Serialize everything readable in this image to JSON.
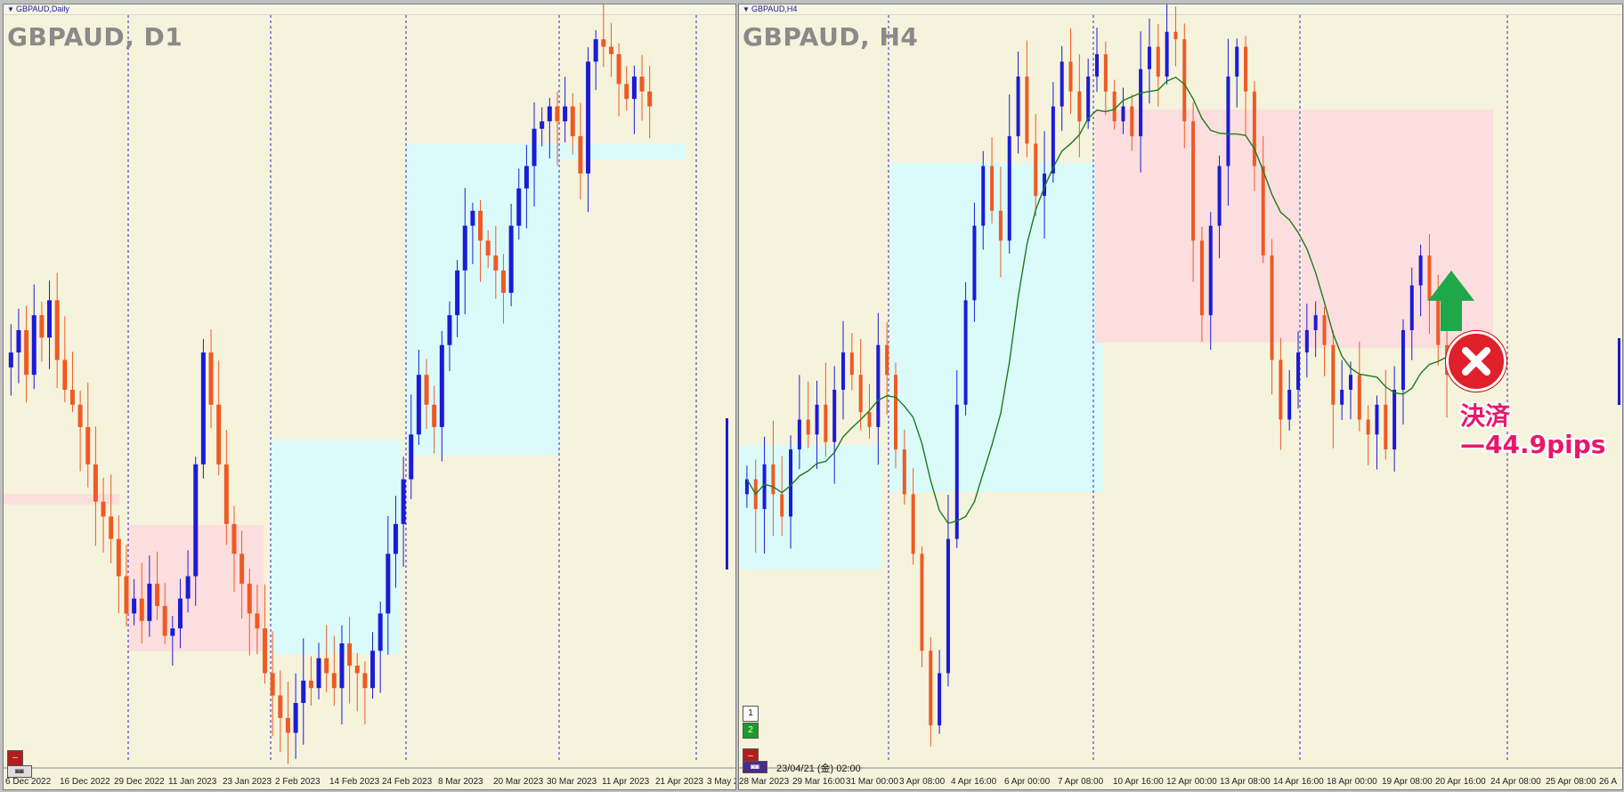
{
  "colors": {
    "background": "#f5f3dc",
    "bull": "#1b1bd6",
    "bear": "#ee5a24",
    "ma": "#1c7a1c",
    "blue_zone": "#dbfbfb",
    "red_zone": "#fddede",
    "grid": "#2a2ad0"
  },
  "left": {
    "caption": "GBPAUD,Daily",
    "symbol": "GBPAUD, D1",
    "x_labels": [
      "6 Dec 2022",
      "16 Dec 2022",
      "29 Dec 2022",
      "11 Jan 2023",
      "23 Jan 2023",
      "2 Feb 2023",
      "14 Feb 2023",
      "24 Feb 2023",
      "8 Mar 2023",
      "20 Mar 2023",
      "30 Mar 2023",
      "11 Apr 2023",
      "21 Apr 2023",
      "3 May 2"
    ]
  },
  "right": {
    "caption": "GBPAUD,H4",
    "symbol": "GBPAUD, H4",
    "x_labels": [
      "28 Mar 2023",
      "29 Mar 16:00",
      "31 Mar 00:00",
      "3 Apr 08:00",
      "4 Apr 16:00",
      "6 Apr 00:00",
      "7 Apr 08:00",
      "10 Apr 16:00",
      "12 Apr 00:00",
      "13 Apr 08:00",
      "14 Apr 16:00",
      "18 Apr 00:00",
      "19 Apr 08:00",
      "20 Apr 16:00",
      "24 Apr 08:00",
      "25 Apr 08:00",
      "26 A"
    ],
    "buttons": [
      "1",
      "2"
    ],
    "timestamp": "23/04/21 (金) 02:00",
    "annotation": {
      "line1": "決済",
      "line2": "—44.9pips",
      "close_icon": "close-icon",
      "arrow_icon": "arrow-up-icon"
    }
  },
  "chart_data": [
    {
      "type": "candlestick",
      "title": "GBPAUD, D1",
      "timeframe": "Daily",
      "x_ticks": [
        "6 Dec 2022",
        "16 Dec 2022",
        "29 Dec 2022",
        "11 Jan 2023",
        "23 Jan 2023",
        "2 Feb 2023",
        "14 Feb 2023",
        "24 Feb 2023",
        "8 Mar 2023",
        "20 Mar 2023",
        "30 Mar 2023",
        "11 Apr 2023",
        "21 Apr 2023",
        "3 May 2"
      ],
      "trend_description_values": "close path approx",
      "closes": [
        0.55,
        0.58,
        0.52,
        0.6,
        0.57,
        0.62,
        0.54,
        0.5,
        0.48,
        0.45,
        0.4,
        0.35,
        0.33,
        0.3,
        0.25,
        0.2,
        0.22,
        0.19,
        0.24,
        0.21,
        0.17,
        0.18,
        0.22,
        0.25,
        0.4,
        0.55,
        0.48,
        0.4,
        0.32,
        0.28,
        0.24,
        0.2,
        0.18,
        0.12,
        0.09,
        0.06,
        0.04,
        0.08,
        0.11,
        0.1,
        0.14,
        0.12,
        0.1,
        0.16,
        0.13,
        0.12,
        0.1,
        0.15,
        0.2,
        0.28,
        0.32,
        0.38,
        0.44,
        0.52,
        0.48,
        0.45,
        0.56,
        0.6,
        0.66,
        0.72,
        0.74,
        0.7,
        0.68,
        0.66,
        0.63,
        0.72,
        0.77,
        0.8,
        0.85,
        0.86,
        0.88,
        0.86,
        0.88,
        0.84,
        0.79,
        0.94,
        0.97,
        0.96,
        0.95,
        0.91,
        0.89,
        0.92,
        0.9,
        0.88
      ]
    },
    {
      "type": "candlestick",
      "title": "GBPAUD, H4",
      "timeframe": "H4",
      "x_ticks": [
        "28 Mar 2023",
        "29 Mar 16:00",
        "31 Mar 00:00",
        "3 Apr 08:00",
        "4 Apr 16:00",
        "6 Apr 00:00",
        "7 Apr 08:00",
        "10 Apr 16:00",
        "12 Apr 00:00",
        "13 Apr 08:00",
        "14 Apr 16:00",
        "18 Apr 00:00",
        "19 Apr 08:00",
        "20 Apr 16:00",
        "24 Apr 08:00",
        "25 Apr 08:00",
        "26 A"
      ],
      "closes": [
        0.38,
        0.34,
        0.4,
        0.36,
        0.33,
        0.42,
        0.46,
        0.44,
        0.48,
        0.43,
        0.5,
        0.55,
        0.52,
        0.47,
        0.45,
        0.56,
        0.52,
        0.42,
        0.36,
        0.28,
        0.15,
        0.05,
        0.12,
        0.3,
        0.48,
        0.62,
        0.72,
        0.8,
        0.74,
        0.7,
        0.84,
        0.92,
        0.83,
        0.76,
        0.79,
        0.88,
        0.94,
        0.9,
        0.86,
        0.92,
        0.95,
        0.9,
        0.86,
        0.88,
        0.84,
        0.93,
        0.96,
        0.92,
        0.98,
        0.97,
        0.86,
        0.7,
        0.6,
        0.72,
        0.8,
        0.92,
        0.96,
        0.9,
        0.8,
        0.68,
        0.54,
        0.46,
        0.5,
        0.55,
        0.58,
        0.6,
        0.56,
        0.48,
        0.5,
        0.52,
        0.46,
        0.44,
        0.48,
        0.42,
        0.5,
        0.58,
        0.64,
        0.68,
        0.62,
        0.56,
        0.52
      ],
      "moving_average": true,
      "annotation": "決済 —44.9pips"
    }
  ]
}
